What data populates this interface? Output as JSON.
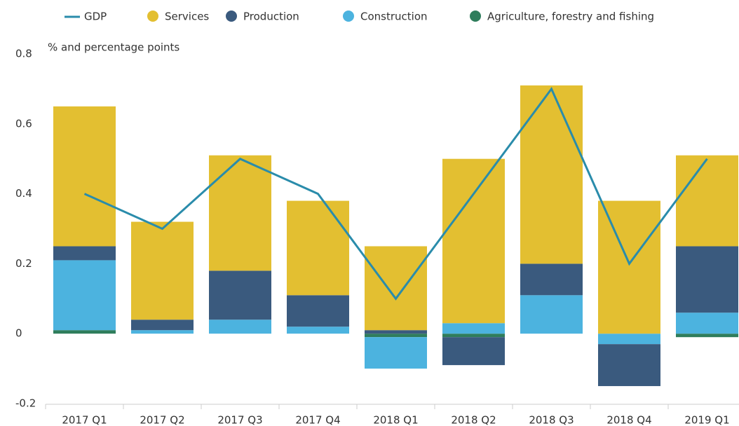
{
  "chart_data": {
    "type": "bar",
    "stacked": true,
    "y_label": "% and percentage points",
    "categories": [
      "2017 Q1",
      "2017 Q2",
      "2017 Q3",
      "2017 Q4",
      "2018 Q1",
      "2018 Q2",
      "2018 Q3",
      "2018 Q4",
      "2019 Q1"
    ],
    "line": {
      "name": "GDP",
      "color": "#2a8cab",
      "values": [
        0.4,
        0.3,
        0.5,
        0.4,
        0.1,
        0.4,
        0.7,
        0.2,
        0.5
      ]
    },
    "series": [
      {
        "name": "Services",
        "color": "#e3bf31",
        "values": [
          0.4,
          0.28,
          0.33,
          0.27,
          0.24,
          0.47,
          0.51,
          0.38,
          0.26
        ]
      },
      {
        "name": "Production",
        "color": "#3a5a7e",
        "values": [
          0.04,
          0.03,
          0.14,
          0.09,
          0.01,
          -0.08,
          0.09,
          -0.12,
          0.19
        ]
      },
      {
        "name": "Construction",
        "color": "#4cb3df",
        "values": [
          0.2,
          0.01,
          0.04,
          0.02,
          -0.09,
          0.03,
          0.11,
          -0.03,
          0.06
        ]
      },
      {
        "name": "Agriculture, forestry and fishing",
        "color": "#2f7d5c",
        "values": [
          0.01,
          0,
          0,
          0,
          -0.01,
          -0.01,
          0,
          0,
          -0.01
        ]
      }
    ],
    "ylim": [
      -0.2,
      0.8
    ],
    "yticks": [
      -0.2,
      0,
      0.2,
      0.4,
      0.6,
      0.8
    ],
    "grid": false
  }
}
